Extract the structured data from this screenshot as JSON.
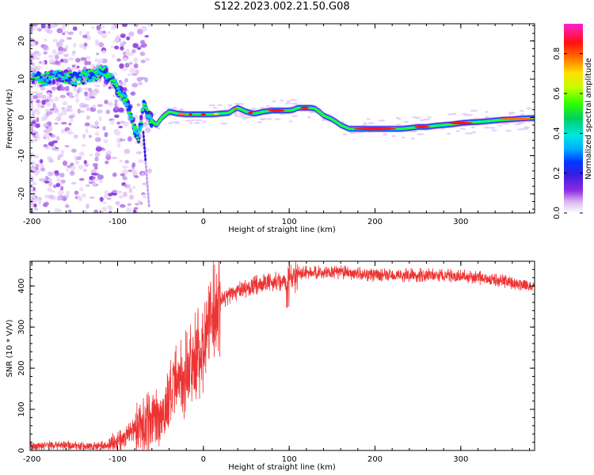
{
  "title": "S122.2023.002.21.50.G08",
  "colors": {
    "snr_line": "#ee3333",
    "axis": "#000000"
  },
  "chart_data": [
    {
      "type": "heatmap",
      "xlabel": "Height of straight line (km)",
      "ylabel": "Frequency (Hz)",
      "xlim": [
        -202,
        386
      ],
      "ylim": [
        -25,
        24.5
      ],
      "xticks": [
        -200,
        -100,
        0,
        100,
        200,
        300
      ],
      "yticks": [
        -20,
        -10,
        0,
        10,
        20
      ],
      "colorbar": {
        "label": "Normalized spectral amplitude",
        "range": [
          0,
          0.95
        ],
        "ticks": [
          0.0,
          0.2,
          0.4,
          0.6,
          0.8
        ],
        "tick_labels": [
          "0.0",
          "0.2",
          "0.4",
          "0.6",
          "0.8"
        ],
        "colormap": "gist_ncar-like: white, violet, blue, cyan, green, yellow, red, pink"
      },
      "ridge": {
        "x": [
          -200,
          -185,
          -170,
          -150,
          -130,
          -115,
          -105,
          -95,
          -88,
          -84,
          -80,
          -75,
          -70,
          -65,
          -60,
          -55,
          -48,
          -40,
          -30,
          -20,
          -10,
          0,
          10,
          20,
          30,
          35,
          40,
          45,
          50,
          55,
          60,
          70,
          80,
          90,
          100,
          105,
          110,
          115,
          120,
          125,
          130,
          135,
          140,
          145,
          150,
          155,
          160,
          165,
          170,
          180,
          190,
          200,
          210,
          220,
          230,
          240,
          250,
          260,
          270,
          280,
          290,
          300,
          310,
          320,
          330,
          340,
          350,
          360,
          370,
          380,
          386
        ],
        "y": [
          11,
          10,
          11,
          10,
          11,
          12,
          9,
          6,
          3,
          0,
          -3,
          -5,
          3,
          1,
          -1,
          -2,
          0,
          1.5,
          1,
          0.8,
          0.8,
          0.8,
          0.8,
          1,
          1.2,
          2,
          2.5,
          2,
          1.5,
          1.2,
          1,
          1.5,
          1.8,
          1.8,
          1.8,
          2,
          2.5,
          2.5,
          2.5,
          2.5,
          2.3,
          1.5,
          0.5,
          0,
          -0.5,
          -1.2,
          -2,
          -2.5,
          -3,
          -3,
          -3,
          -3,
          -3,
          -3,
          -3,
          -2.8,
          -2.5,
          -2.5,
          -2.2,
          -2,
          -1.8,
          -1.5,
          -1.3,
          -1.2,
          -1,
          -0.8,
          -0.6,
          -0.5,
          -0.3,
          -0.2,
          -0.2
        ]
      }
    },
    {
      "type": "line",
      "xlabel": "Height of straight line (km)",
      "ylabel": "SNR (10 * V/V)",
      "xlim": [
        -202,
        386
      ],
      "ylim": [
        0,
        460
      ],
      "xticks": [
        -200,
        -100,
        0,
        100,
        200,
        300
      ],
      "yticks": [
        0,
        100,
        200,
        300,
        400
      ],
      "series": [
        {
          "x": [
            -202,
            -190,
            -180,
            -170,
            -160,
            -150,
            -140,
            -130,
            -120,
            -110,
            -100,
            -95,
            -90,
            -85,
            -80,
            -75,
            -70,
            -65,
            -60,
            -55,
            -50,
            -45,
            -40,
            -35,
            -30,
            -25,
            -20,
            -15,
            -10,
            -5,
            0,
            5,
            10,
            15,
            20,
            25,
            30,
            35,
            40,
            50,
            60,
            70,
            80,
            90,
            95,
            100,
            105,
            110,
            120,
            130,
            140,
            150,
            160,
            170,
            180,
            190,
            200,
            220,
            240,
            260,
            280,
            300,
            320,
            340,
            350,
            360,
            370,
            380,
            386
          ],
          "y": [
            10,
            12,
            13,
            14,
            13,
            12,
            10,
            9,
            10,
            12,
            18,
            25,
            35,
            45,
            55,
            60,
            62,
            65,
            70,
            75,
            85,
            100,
            120,
            145,
            160,
            175,
            190,
            200,
            220,
            240,
            260,
            300,
            330,
            350,
            365,
            370,
            378,
            382,
            388,
            395,
            400,
            405,
            410,
            412,
            415,
            420,
            425,
            430,
            432,
            432,
            433,
            433,
            433,
            432,
            430,
            428,
            427,
            426,
            426,
            426,
            425,
            423,
            420,
            415,
            412,
            408,
            404,
            400,
            398
          ]
        }
      ]
    }
  ]
}
